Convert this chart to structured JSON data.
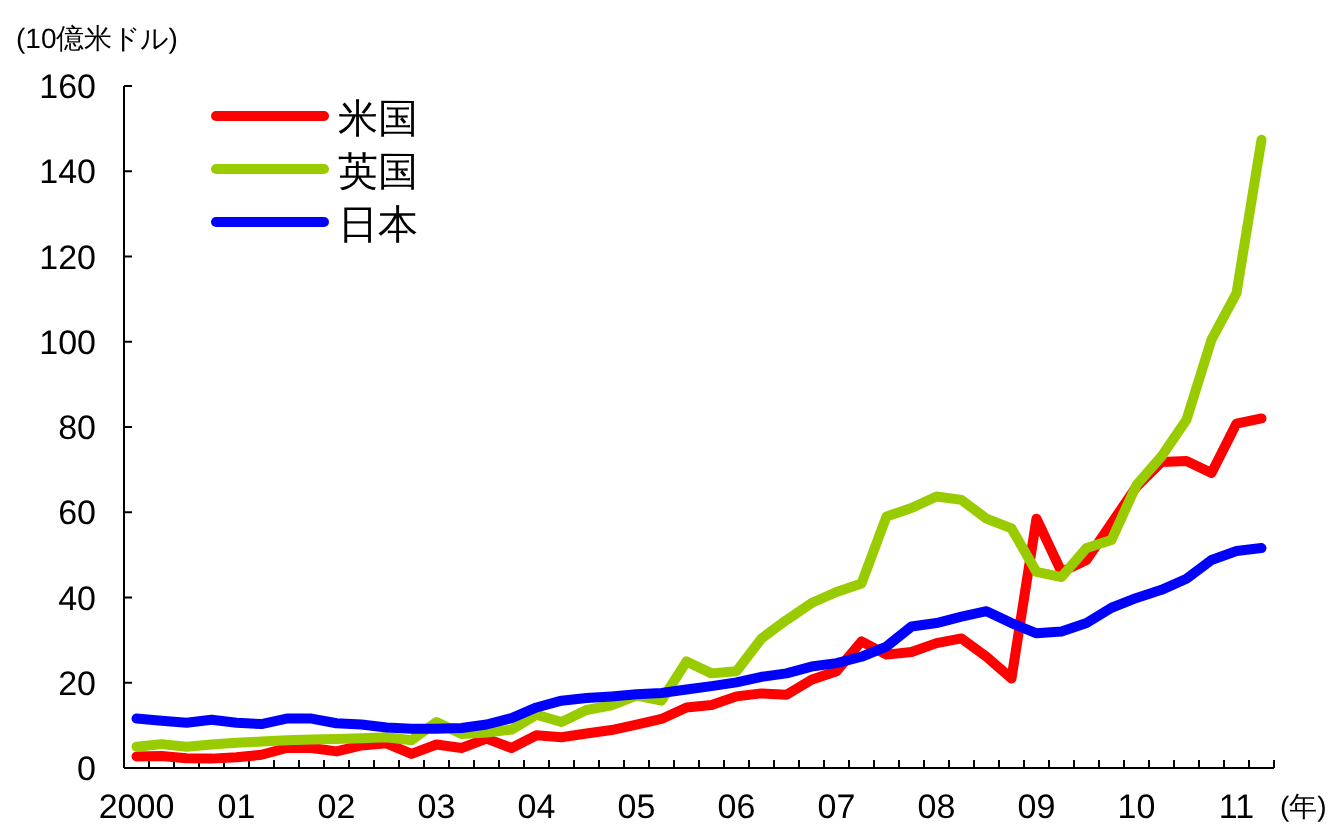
{
  "chart_data": {
    "type": "line",
    "ylabel": "(10億米ドル)",
    "xlabel": "(年)",
    "categories": [
      "2000",
      null,
      null,
      null,
      "01",
      null,
      null,
      null,
      "02",
      null,
      null,
      null,
      "03",
      null,
      null,
      null,
      "04",
      null,
      null,
      null,
      "05",
      null,
      null,
      null,
      "06",
      null,
      null,
      null,
      "07",
      null,
      null,
      null,
      "08",
      null,
      null,
      null,
      "09",
      null,
      null,
      null,
      "10",
      null,
      null,
      null,
      "11",
      null
    ],
    "ylim": [
      0,
      160
    ],
    "yticks": [
      0,
      20,
      40,
      60,
      80,
      100,
      120,
      140,
      160
    ],
    "grid": false,
    "legend": "top left",
    "marker": "none",
    "line_style": "solid",
    "series": [
      {
        "name": "米国",
        "color": "#ff0000",
        "values": [
          2.7,
          2.8,
          2.3,
          2.2,
          2.5,
          3.1,
          4.7,
          4.7,
          3.9,
          5.3,
          5.8,
          3.3,
          5.5,
          4.7,
          6.9,
          4.7,
          7.7,
          7.2,
          8.1,
          8.9,
          10.2,
          11.5,
          14.2,
          14.8,
          16.8,
          17.5,
          17.2,
          20.7,
          22.7,
          29.7,
          26.6,
          27.2,
          29.3,
          30.4,
          26.1,
          21.0,
          58.5,
          46.0,
          48.8,
          57.4,
          66.0,
          71.8,
          72.0,
          69.2,
          80.8,
          82.0
        ]
      },
      {
        "name": "英国",
        "color": "#99cc00",
        "values": [
          5.0,
          5.6,
          5.0,
          5.5,
          5.9,
          6.2,
          6.5,
          6.7,
          6.8,
          7.0,
          7.2,
          6.5,
          10.8,
          8.0,
          8.3,
          9.0,
          12.5,
          10.8,
          13.6,
          14.7,
          17.0,
          15.8,
          25.0,
          22.2,
          22.7,
          30.4,
          34.7,
          38.7,
          41.3,
          43.3,
          59.0,
          61.0,
          63.7,
          62.9,
          58.5,
          56.2,
          46.0,
          44.8,
          51.6,
          53.5,
          66.4,
          73.1,
          81.7,
          100.5,
          111.4,
          147.4
        ]
      },
      {
        "name": "日本",
        "color": "#0000ff",
        "values": [
          11.6,
          11.1,
          10.6,
          11.3,
          10.6,
          10.3,
          11.6,
          11.6,
          10.5,
          10.2,
          9.5,
          9.2,
          9.2,
          9.4,
          10.2,
          11.7,
          14.2,
          15.8,
          16.4,
          16.8,
          17.3,
          17.6,
          18.4,
          19.2,
          20.1,
          21.4,
          22.2,
          23.8,
          24.6,
          26.1,
          28.5,
          33.2,
          34.0,
          35.5,
          36.8,
          34.0,
          31.6,
          32.0,
          34.0,
          37.6,
          39.9,
          41.8,
          44.4,
          48.8,
          50.9,
          51.6
        ]
      }
    ]
  }
}
